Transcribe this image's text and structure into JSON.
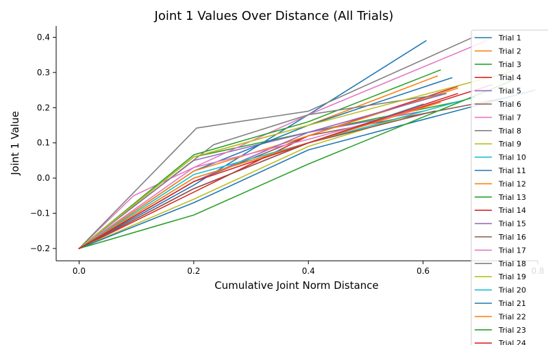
{
  "chart_data": {
    "type": "line",
    "title": "Joint 1 Values Over Distance (All Trials)",
    "xlabel": "Cumulative Joint Norm Distance",
    "ylabel": "Joint 1 Value",
    "xlim": [
      -0.04,
      0.8
    ],
    "ylim": [
      -0.235,
      0.432
    ],
    "xticks": [
      0.0,
      0.2,
      0.4,
      0.6,
      0.8
    ],
    "xtick_labels": [
      "0.0",
      "0.2",
      "0.4",
      "0.6",
      "0.8"
    ],
    "yticks": [
      -0.2,
      -0.1,
      0.0,
      0.1,
      0.2,
      0.3,
      0.4
    ],
    "ytick_labels": [
      "−0.2",
      "−0.1",
      "0.0",
      "0.1",
      "0.2",
      "0.3",
      "0.4"
    ],
    "grid": false,
    "legend_position": "right",
    "series": [
      {
        "name": "Trial 1",
        "color": "#1f77b4",
        "x": [
          0.0,
          0.2,
          0.4,
          0.605
        ],
        "y": [
          -0.2,
          -0.02,
          0.18,
          0.39
        ]
      },
      {
        "name": "Trial 2",
        "color": "#ff7f0e",
        "x": [
          0.0,
          0.2,
          0.4,
          0.625
        ],
        "y": [
          -0.2,
          0.06,
          0.15,
          0.29
        ]
      },
      {
        "name": "Trial 3",
        "color": "#2ca02c",
        "x": [
          0.0,
          0.2,
          0.4,
          0.67
        ],
        "y": [
          -0.2,
          0.06,
          0.13,
          0.22
        ]
      },
      {
        "name": "Trial 4",
        "color": "#d62728",
        "x": [
          0.0,
          0.2,
          0.4,
          0.66
        ],
        "y": [
          -0.2,
          -0.04,
          0.12,
          0.26
        ]
      },
      {
        "name": "Trial 5",
        "color": "#9467bd",
        "x": [
          0.0,
          0.2,
          0.4,
          0.6
        ],
        "y": [
          -0.2,
          0.05,
          0.13,
          0.19
        ]
      },
      {
        "name": "Trial 6",
        "color": "#8c564b",
        "x": [
          0.0,
          0.2,
          0.4,
          0.75
        ],
        "y": [
          -0.2,
          -0.01,
          0.12,
          0.23
        ]
      },
      {
        "name": "Trial 7",
        "color": "#e377c2",
        "x": [
          0.0,
          0.095,
          0.2,
          0.4,
          0.71
        ],
        "y": [
          -0.2,
          -0.05,
          0.03,
          0.18,
          0.39
        ]
      },
      {
        "name": "Trial 8",
        "color": "#7f7f7f",
        "x": [
          0.0,
          0.205,
          0.4,
          0.69
        ],
        "y": [
          -0.2,
          0.142,
          0.19,
          0.402
        ]
      },
      {
        "name": "Trial 9",
        "color": "#bcbd22",
        "x": [
          0.0,
          0.2,
          0.4,
          0.6
        ],
        "y": [
          -0.2,
          -0.06,
          0.09,
          0.19
        ]
      },
      {
        "name": "Trial 10",
        "color": "#17becf",
        "x": [
          0.0,
          0.2,
          0.4,
          0.69
        ],
        "y": [
          -0.2,
          0.0,
          0.1,
          0.23
        ]
      },
      {
        "name": "Trial 11",
        "color": "#1f77b4",
        "x": [
          0.0,
          0.2,
          0.4,
          0.65
        ],
        "y": [
          -0.2,
          0.02,
          0.15,
          0.285
        ]
      },
      {
        "name": "Trial 12",
        "color": "#ff7f0e",
        "x": [
          0.0,
          0.2,
          0.4,
          0.66
        ],
        "y": [
          -0.2,
          0.02,
          0.12,
          0.255
        ]
      },
      {
        "name": "Trial 13",
        "color": "#2ca02c",
        "x": [
          0.0,
          0.2,
          0.4,
          0.63
        ],
        "y": [
          -0.2,
          0.066,
          0.16,
          0.307
        ]
      },
      {
        "name": "Trial 14",
        "color": "#d62728",
        "x": [
          0.0,
          0.2,
          0.4,
          0.72
        ],
        "y": [
          -0.2,
          -0.03,
          0.1,
          0.265
        ]
      },
      {
        "name": "Trial 15",
        "color": "#9467bd",
        "x": [
          0.0,
          0.2,
          0.4,
          0.64
        ],
        "y": [
          -0.2,
          -0.01,
          0.13,
          0.24
        ]
      },
      {
        "name": "Trial 16",
        "color": "#8c564b",
        "x": [
          0.0,
          0.2,
          0.4,
          0.62
        ],
        "y": [
          -0.2,
          -0.03,
          0.1,
          0.19
        ]
      },
      {
        "name": "Trial 17",
        "color": "#e377c2",
        "x": [
          0.0,
          0.2,
          0.4,
          0.6
        ],
        "y": [
          -0.2,
          0.03,
          0.11,
          0.2
        ]
      },
      {
        "name": "Trial 18",
        "color": "#7f7f7f",
        "x": [
          0.0,
          0.235,
          0.4,
          0.64
        ],
        "y": [
          -0.2,
          0.095,
          0.18,
          0.24
        ]
      },
      {
        "name": "Trial 19",
        "color": "#bcbd22",
        "x": [
          0.0,
          0.2,
          0.4,
          0.76
        ],
        "y": [
          -0.2,
          0.06,
          0.15,
          0.305
        ]
      },
      {
        "name": "Trial 20",
        "color": "#17becf",
        "x": [
          0.0,
          0.2,
          0.4,
          0.6
        ],
        "y": [
          -0.2,
          0.01,
          0.1,
          0.21
        ]
      },
      {
        "name": "Trial 21",
        "color": "#1f77b4",
        "x": [
          0.0,
          0.2,
          0.4,
          0.795
        ],
        "y": [
          -0.2,
          -0.07,
          0.08,
          0.25
        ]
      },
      {
        "name": "Trial 22",
        "color": "#ff7f0e",
        "x": [
          0.0,
          0.2,
          0.4,
          0.63
        ],
        "y": [
          -0.2,
          0.0,
          0.1,
          0.215
        ]
      },
      {
        "name": "Trial 23",
        "color": "#2ca02c",
        "x": [
          0.0,
          0.2,
          0.4,
          0.76
        ],
        "y": [
          -0.2,
          -0.105,
          0.04,
          0.28
        ]
      },
      {
        "name": "Trial 24",
        "color": "#d62728",
        "x": [
          0.0,
          0.2,
          0.4,
          0.66
        ],
        "y": [
          -0.2,
          -0.01,
          0.1,
          0.24
        ]
      }
    ]
  }
}
